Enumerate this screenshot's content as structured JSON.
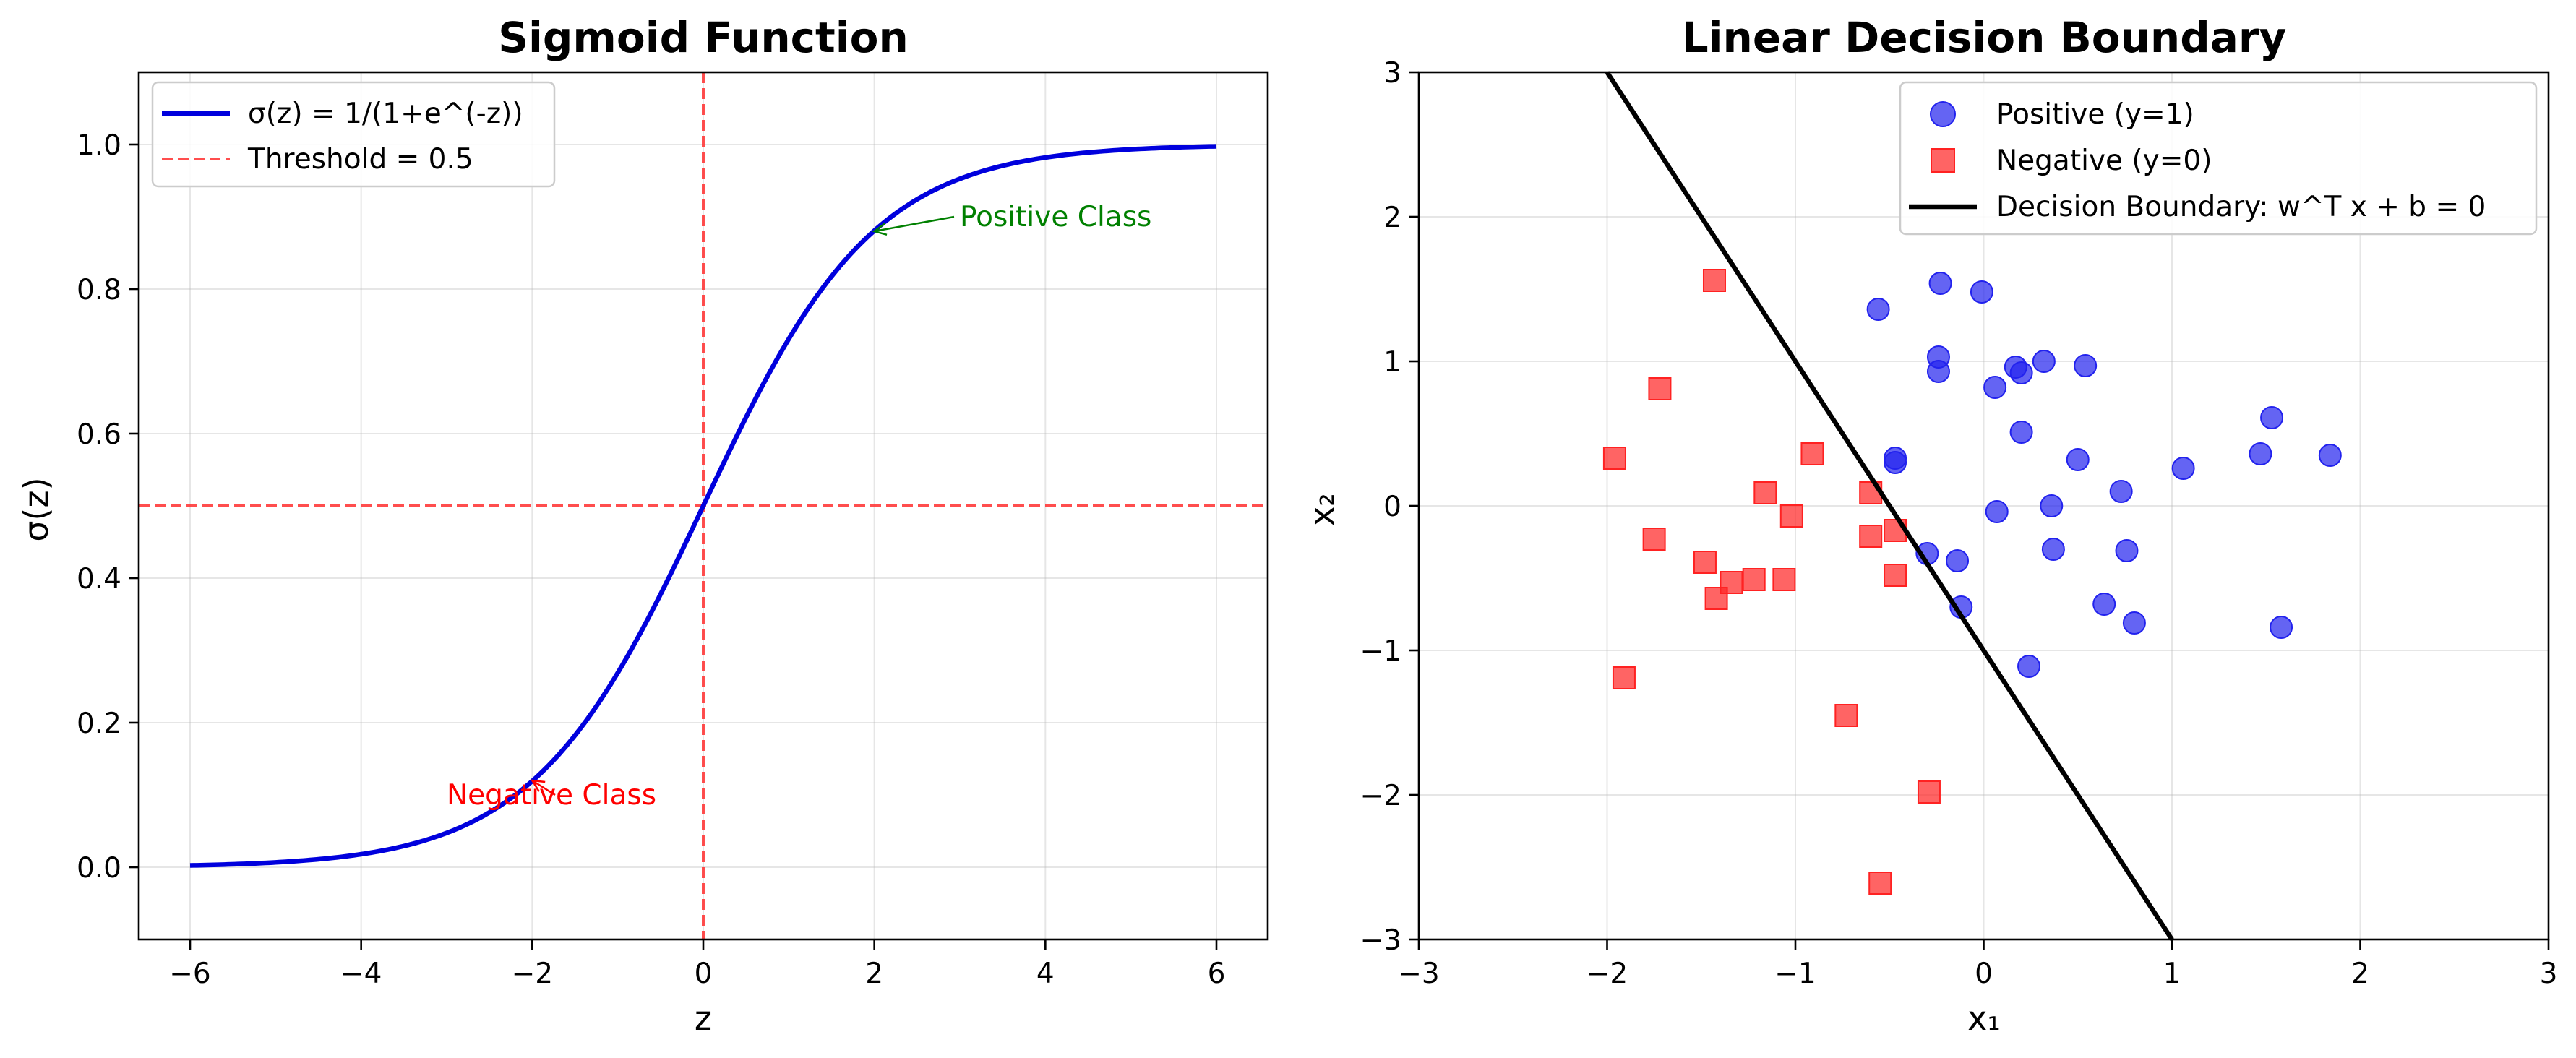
{
  "chart_data": [
    {
      "type": "line",
      "title": "Sigmoid Function",
      "xlabel": "z",
      "ylabel": "σ(z)",
      "xlim": [
        -6.6,
        6.6
      ],
      "ylim": [
        -0.1,
        1.1
      ],
      "xticks": [
        -6,
        -4,
        -2,
        0,
        2,
        4,
        6
      ],
      "xtick_labels": [
        "−6",
        "−4",
        "−2",
        "0",
        "2",
        "4",
        "6"
      ],
      "yticks": [
        0.0,
        0.2,
        0.4,
        0.6,
        0.8,
        1.0
      ],
      "ytick_labels": [
        "0.0",
        "0.2",
        "0.4",
        "0.6",
        "0.8",
        "1.0"
      ],
      "grid": true,
      "legend_position": "upper-left",
      "series": [
        {
          "name": "σ(z) = 1/(1+e^(-z))",
          "function": "sigmoid",
          "x_range": [
            -6,
            6
          ],
          "color": "#0000dd"
        }
      ],
      "reference_lines": [
        {
          "name": "Threshold = 0.5",
          "orientation": "horizontal",
          "value": 0.5,
          "color": "#ff3b3b"
        },
        {
          "orientation": "vertical",
          "value": 0,
          "color": "#ff3b3b"
        }
      ],
      "annotations": [
        {
          "text": "Positive Class",
          "point": [
            2,
            0.88
          ],
          "text_at": [
            3,
            0.9
          ],
          "color": "#008000"
        },
        {
          "text": "Negative Class",
          "point": [
            -2,
            0.12
          ],
          "text_at": [
            -3,
            0.1
          ],
          "color": "#ff0000"
        }
      ]
    },
    {
      "type": "scatter",
      "title": "Linear Decision Boundary",
      "xlabel": "x₁",
      "ylabel": "x₂",
      "xlim": [
        -3,
        3
      ],
      "ylim": [
        -3,
        3
      ],
      "xticks": [
        -3,
        -2,
        -1,
        0,
        1,
        2,
        3
      ],
      "xtick_labels": [
        "−3",
        "−2",
        "−1",
        "0",
        "1",
        "2",
        "3"
      ],
      "yticks": [
        -3,
        -2,
        -1,
        0,
        1,
        2,
        3
      ],
      "ytick_labels": [
        "−3",
        "−2",
        "−1",
        "0",
        "1",
        "2",
        "3"
      ],
      "grid": true,
      "legend_position": "upper-right",
      "series": [
        {
          "name": "Positive (y=1)",
          "marker": "circle",
          "color": "#2222ee",
          "points": [
            [
              -0.56,
              1.36
            ],
            [
              -0.23,
              1.54
            ],
            [
              -0.01,
              1.48
            ],
            [
              -0.24,
              1.03
            ],
            [
              -0.24,
              0.93
            ],
            [
              0.06,
              0.82
            ],
            [
              0.17,
              0.96
            ],
            [
              0.2,
              0.92
            ],
            [
              0.32,
              1.0
            ],
            [
              0.54,
              0.97
            ],
            [
              0.2,
              0.51
            ],
            [
              -0.47,
              0.33
            ],
            [
              -0.47,
              0.3
            ],
            [
              1.53,
              0.61
            ],
            [
              1.47,
              0.36
            ],
            [
              1.84,
              0.35
            ],
            [
              1.06,
              0.26
            ],
            [
              0.5,
              0.32
            ],
            [
              0.73,
              0.1
            ],
            [
              0.36,
              0.0
            ],
            [
              0.07,
              -0.04
            ],
            [
              -0.3,
              -0.33
            ],
            [
              -0.14,
              -0.38
            ],
            [
              0.37,
              -0.3
            ],
            [
              0.76,
              -0.31
            ],
            [
              0.64,
              -0.68
            ],
            [
              0.8,
              -0.81
            ],
            [
              1.58,
              -0.84
            ],
            [
              -0.12,
              -0.7
            ],
            [
              0.24,
              -1.11
            ]
          ]
        },
        {
          "name": "Negative (y=0)",
          "marker": "square",
          "color": "#ff2222",
          "points": [
            [
              -1.43,
              1.56
            ],
            [
              -1.72,
              0.81
            ],
            [
              -1.96,
              0.33
            ],
            [
              -0.91,
              0.36
            ],
            [
              -1.16,
              0.09
            ],
            [
              -1.02,
              -0.07
            ],
            [
              -0.6,
              0.09
            ],
            [
              -0.6,
              -0.21
            ],
            [
              -0.47,
              -0.17
            ],
            [
              -0.47,
              -0.48
            ],
            [
              -1.75,
              -0.23
            ],
            [
              -1.48,
              -0.39
            ],
            [
              -1.34,
              -0.53
            ],
            [
              -1.22,
              -0.51
            ],
            [
              -1.06,
              -0.51
            ],
            [
              -1.42,
              -0.64
            ],
            [
              -1.91,
              -1.19
            ],
            [
              -0.73,
              -1.45
            ],
            [
              -0.29,
              -1.98
            ],
            [
              -0.55,
              -2.61
            ]
          ]
        },
        {
          "name": "Decision Boundary: w^T x + b = 0",
          "type": "line",
          "color": "#000000",
          "points": [
            [
              -2,
              3
            ],
            [
              1,
              -3
            ]
          ]
        }
      ]
    }
  ]
}
